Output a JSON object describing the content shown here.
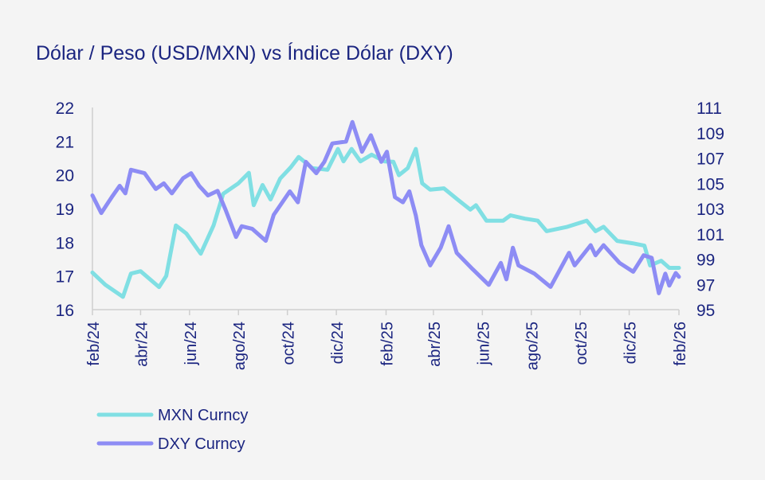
{
  "chart_data": {
    "type": "line",
    "title": "Dólar / Peso (USD/MXN) vs Índice Dólar (DXY)",
    "x_ticks": [
      "feb/24",
      "abr/24",
      "jun/24",
      "ago/24",
      "oct/24",
      "dic/24",
      "feb/25",
      "abr/25",
      "jun/25",
      "ago/25",
      "oct/25",
      "dic/25",
      "feb/26"
    ],
    "x_tick_dates": [
      "2024-02-01",
      "2024-04-01",
      "2024-06-01",
      "2024-08-01",
      "2024-10-01",
      "2024-12-01",
      "2025-02-01",
      "2025-04-01",
      "2025-06-01",
      "2025-08-01",
      "2025-10-01",
      "2025-12-01",
      "2026-02-01"
    ],
    "xlim": [
      "2024-02-01",
      "2026-02-01"
    ],
    "y_left": {
      "ylim": [
        16,
        22
      ],
      "ticks": [
        "16",
        "17",
        "18",
        "19",
        "20",
        "21",
        "22"
      ]
    },
    "y_right": {
      "ylim": [
        95,
        111
      ],
      "ticks": [
        "95",
        "97",
        "99",
        "101",
        "103",
        "105",
        "107",
        "109",
        "111"
      ]
    },
    "grid": false,
    "legend": "bottom-left",
    "colors": {
      "MXN Curncy": "#80dfe3",
      "DXY Curncy": "#8d8cf4",
      "text": "#1b2580",
      "axis": "#cfcfcf"
    },
    "series": [
      {
        "name": "MXN Curncy",
        "axis": "left",
        "points": [
          [
            "2024-02-01",
            17.1
          ],
          [
            "2024-02-17",
            16.74
          ],
          [
            "2024-03-10",
            16.38
          ],
          [
            "2024-03-20",
            17.07
          ],
          [
            "2024-04-01",
            17.14
          ],
          [
            "2024-04-24",
            16.67
          ],
          [
            "2024-05-03",
            17.0
          ],
          [
            "2024-05-15",
            18.5
          ],
          [
            "2024-05-28",
            18.26
          ],
          [
            "2024-06-15",
            17.66
          ],
          [
            "2024-07-01",
            18.5
          ],
          [
            "2024-07-13",
            19.44
          ],
          [
            "2024-08-01",
            19.75
          ],
          [
            "2024-08-14",
            20.06
          ],
          [
            "2024-08-20",
            19.1
          ],
          [
            "2024-08-31",
            19.7
          ],
          [
            "2024-09-10",
            19.27
          ],
          [
            "2024-09-22",
            19.89
          ],
          [
            "2024-10-05",
            20.22
          ],
          [
            "2024-10-15",
            20.53
          ],
          [
            "2024-11-01",
            20.2
          ],
          [
            "2024-11-20",
            20.15
          ],
          [
            "2024-12-03",
            20.77
          ],
          [
            "2024-12-10",
            20.4
          ],
          [
            "2024-12-20",
            20.77
          ],
          [
            "2024-12-31",
            20.4
          ],
          [
            "2025-01-14",
            20.6
          ],
          [
            "2025-01-30",
            20.4
          ],
          [
            "2025-02-10",
            20.39
          ],
          [
            "2025-02-17",
            19.99
          ],
          [
            "2025-02-28",
            20.2
          ],
          [
            "2025-03-10",
            20.77
          ],
          [
            "2025-03-18",
            19.75
          ],
          [
            "2025-03-28",
            19.56
          ],
          [
            "2025-04-14",
            19.6
          ],
          [
            "2025-05-01",
            19.27
          ],
          [
            "2025-05-17",
            18.97
          ],
          [
            "2025-05-24",
            19.1
          ],
          [
            "2025-06-06",
            18.64
          ],
          [
            "2025-06-27",
            18.64
          ],
          [
            "2025-07-06",
            18.8
          ],
          [
            "2025-07-24",
            18.7
          ],
          [
            "2025-08-09",
            18.64
          ],
          [
            "2025-08-20",
            18.33
          ],
          [
            "2025-09-15",
            18.46
          ],
          [
            "2025-10-09",
            18.64
          ],
          [
            "2025-10-20",
            18.33
          ],
          [
            "2025-10-30",
            18.46
          ],
          [
            "2025-11-16",
            18.04
          ],
          [
            "2025-12-05",
            17.97
          ],
          [
            "2025-12-20",
            17.9
          ],
          [
            "2025-12-27",
            17.31
          ],
          [
            "2026-01-10",
            17.45
          ],
          [
            "2026-01-20",
            17.24
          ],
          [
            "2026-02-01",
            17.24
          ]
        ]
      },
      {
        "name": "DXY Curncy",
        "axis": "right",
        "points": [
          [
            "2024-02-01",
            104.04
          ],
          [
            "2024-02-12",
            102.65
          ],
          [
            "2024-02-25",
            103.9
          ],
          [
            "2024-03-06",
            104.8
          ],
          [
            "2024-03-13",
            104.2
          ],
          [
            "2024-03-20",
            106.07
          ],
          [
            "2024-04-06",
            105.8
          ],
          [
            "2024-04-20",
            104.55
          ],
          [
            "2024-04-30",
            105.0
          ],
          [
            "2024-05-10",
            104.2
          ],
          [
            "2024-05-24",
            105.4
          ],
          [
            "2024-06-03",
            105.8
          ],
          [
            "2024-06-13",
            104.8
          ],
          [
            "2024-06-24",
            104.04
          ],
          [
            "2024-07-06",
            104.4
          ],
          [
            "2024-07-16",
            102.9
          ],
          [
            "2024-07-29",
            100.75
          ],
          [
            "2024-08-05",
            101.6
          ],
          [
            "2024-08-18",
            101.4
          ],
          [
            "2024-09-04",
            100.45
          ],
          [
            "2024-09-14",
            102.5
          ],
          [
            "2024-10-04",
            104.36
          ],
          [
            "2024-10-14",
            103.5
          ],
          [
            "2024-10-24",
            106.7
          ],
          [
            "2024-11-06",
            105.8
          ],
          [
            "2024-11-16",
            106.7
          ],
          [
            "2024-11-26",
            108.15
          ],
          [
            "2024-12-13",
            108.3
          ],
          [
            "2024-12-21",
            109.85
          ],
          [
            "2025-01-02",
            107.5
          ],
          [
            "2025-01-13",
            108.8
          ],
          [
            "2025-01-26",
            106.7
          ],
          [
            "2025-02-02",
            107.5
          ],
          [
            "2025-02-12",
            103.9
          ],
          [
            "2025-02-22",
            103.5
          ],
          [
            "2025-03-02",
            104.36
          ],
          [
            "2025-03-10",
            102.46
          ],
          [
            "2025-03-17",
            100.1
          ],
          [
            "2025-03-28",
            98.5
          ],
          [
            "2025-04-10",
            99.9
          ],
          [
            "2025-04-20",
            101.6
          ],
          [
            "2025-04-30",
            99.5
          ],
          [
            "2025-05-20",
            98.2
          ],
          [
            "2025-06-09",
            96.96
          ],
          [
            "2025-06-24",
            98.7
          ],
          [
            "2025-07-01",
            97.4
          ],
          [
            "2025-07-09",
            99.9
          ],
          [
            "2025-07-16",
            98.5
          ],
          [
            "2025-08-05",
            97.84
          ],
          [
            "2025-08-25",
            96.8
          ],
          [
            "2025-09-17",
            99.5
          ],
          [
            "2025-09-24",
            98.5
          ],
          [
            "2025-10-14",
            100.1
          ],
          [
            "2025-10-20",
            99.3
          ],
          [
            "2025-10-30",
            100.1
          ],
          [
            "2025-11-19",
            98.7
          ],
          [
            "2025-12-06",
            98.0
          ],
          [
            "2025-12-19",
            99.3
          ],
          [
            "2025-12-29",
            99.1
          ],
          [
            "2026-01-07",
            96.3
          ],
          [
            "2026-01-15",
            97.85
          ],
          [
            "2026-01-20",
            96.9
          ],
          [
            "2026-01-28",
            97.9
          ],
          [
            "2026-02-01",
            97.6
          ]
        ]
      }
    ]
  }
}
